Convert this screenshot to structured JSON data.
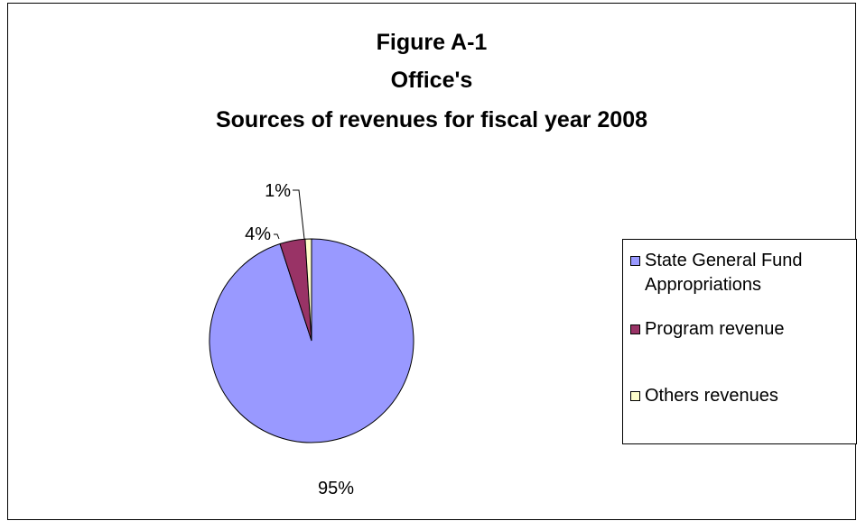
{
  "title_lines": [
    "Figure A-1",
    "Office's",
    "Sources of revenues for fiscal year 2008"
  ],
  "chart_data": {
    "type": "pie",
    "title": "Figure A-1 Office's Sources of revenues for fiscal year 2008",
    "labels": [
      "State General Fund Appropriations",
      "Program revenue",
      "Others revenues"
    ],
    "values": [
      95,
      4,
      1
    ],
    "data_labels": [
      "95%",
      "4%",
      "1%"
    ],
    "colors": [
      "#9999ff",
      "#993366",
      "#ffffcc"
    ],
    "legend_position": "right"
  },
  "legend": {
    "items": [
      {
        "label": "State General Fund Appropriations",
        "color": "#9999ff"
      },
      {
        "label": "Program revenue",
        "color": "#993366"
      },
      {
        "label": "Others revenues",
        "color": "#ffffcc"
      }
    ]
  }
}
